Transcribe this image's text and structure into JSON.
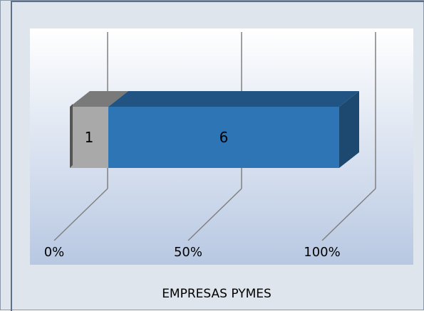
{
  "chart_data": {
    "type": "bar",
    "orientation": "horizontal",
    "stacked": "percent",
    "three_d": true,
    "categories": [
      ""
    ],
    "series": [
      {
        "values": [
          1
        ],
        "color": "#a9a9a9"
      },
      {
        "values": [
          6
        ],
        "color": "#2e75b6"
      }
    ],
    "data_labels": [
      "1",
      "6"
    ],
    "xaxis": {
      "ticks": [
        "0%",
        "50%",
        "100%"
      ],
      "range": [
        0,
        100
      ]
    },
    "xlabel": "EMPRESAS PYMES",
    "ylabel": "",
    "title": "",
    "grid": true,
    "legend": "none"
  }
}
